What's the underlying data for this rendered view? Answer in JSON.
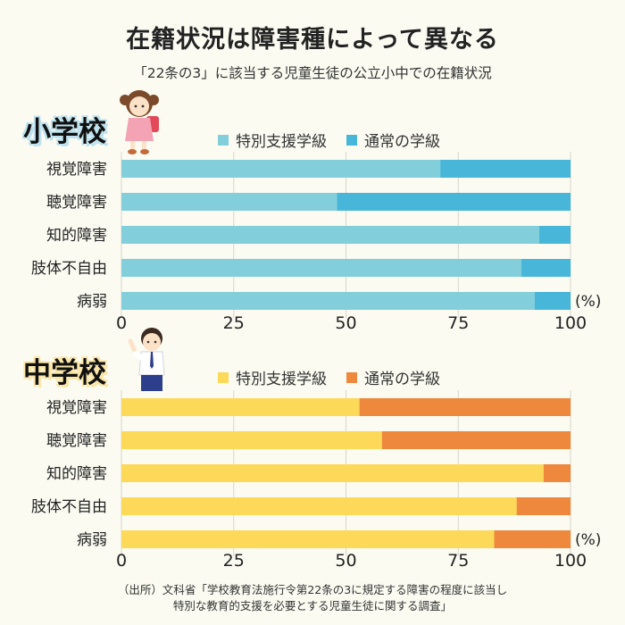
{
  "title": "在籍状況は障害種によって異なる",
  "subtitle": "「22条の3」に該当する児童生徒の公立小中での在籍状況",
  "colors": {
    "elem_special": "#82cfdb",
    "elem_regular": "#47b6d8",
    "mid_special": "#fdd95a",
    "mid_regular": "#ee883c",
    "grid": "#d6d6cc"
  },
  "percent_unit": "(%)",
  "chart_data": [
    {
      "type": "bar",
      "orientation": "horizontal",
      "stacked": true,
      "heading": "小学校",
      "categories": [
        "視覚障害",
        "聴覚障害",
        "知的障害",
        "肢体不自由",
        "病弱"
      ],
      "series": [
        {
          "name": "特別支援学級",
          "values": [
            71,
            48,
            93,
            89,
            92
          ]
        },
        {
          "name": "通常の学級",
          "values": [
            29,
            52,
            7,
            11,
            8
          ]
        }
      ],
      "xlim": [
        0,
        100
      ],
      "xticks": [
        "0",
        "25",
        "50",
        "75",
        "100"
      ],
      "grid": true,
      "legend": "top"
    },
    {
      "type": "bar",
      "orientation": "horizontal",
      "stacked": true,
      "heading": "中学校",
      "categories": [
        "視覚障害",
        "聴覚障害",
        "知的障害",
        "肢体不自由",
        "病弱"
      ],
      "series": [
        {
          "name": "特別支援学級",
          "values": [
            53,
            58,
            94,
            88,
            83
          ]
        },
        {
          "name": "通常の学級",
          "values": [
            47,
            42,
            6,
            12,
            17
          ]
        }
      ],
      "xlim": [
        0,
        100
      ],
      "xticks": [
        "0",
        "25",
        "50",
        "75",
        "100"
      ],
      "grid": true,
      "legend": "top"
    }
  ],
  "source": {
    "line1": "（出所）文科省「学校教育法施行令第22条の3に規定する障害の程度に該当し",
    "line2": "特別な教育的支援を必要とする児童生徒に関する調査」"
  }
}
